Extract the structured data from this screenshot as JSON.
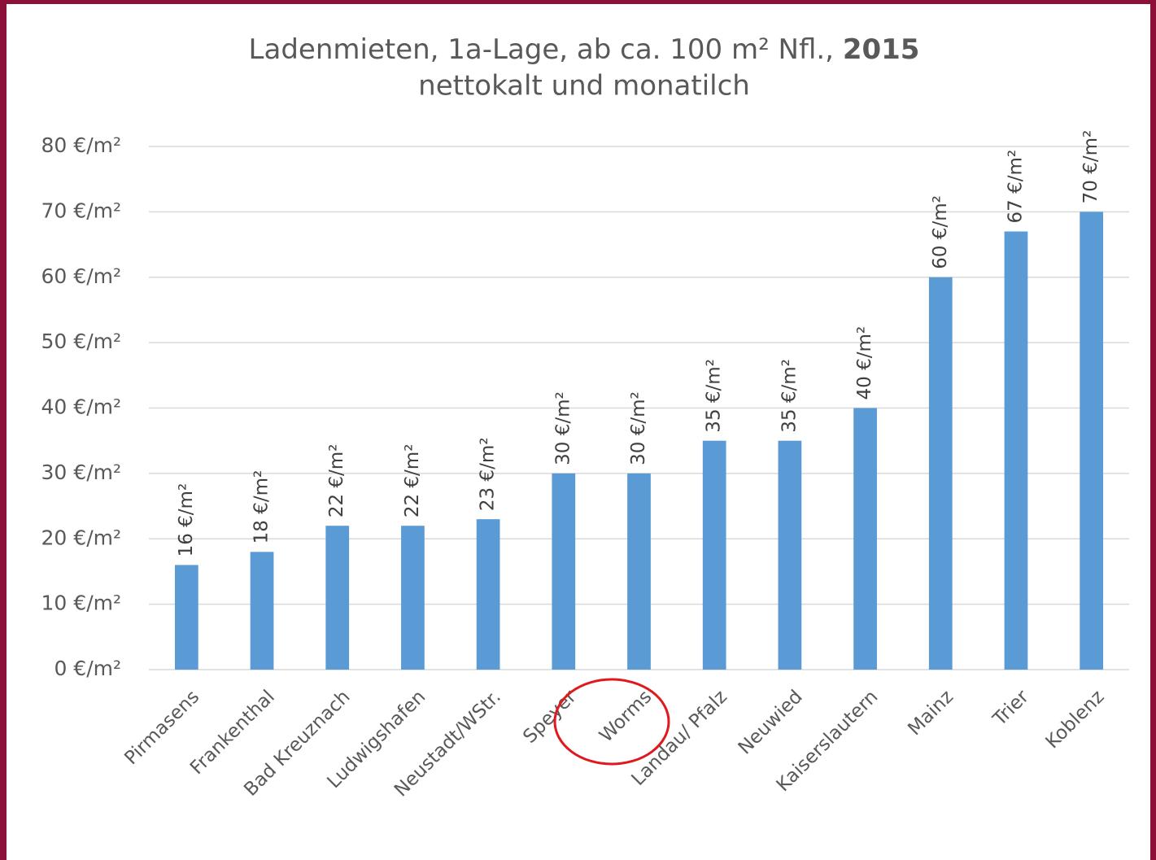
{
  "chart_data": {
    "type": "bar",
    "title": [
      "Ladenmieten, 1a-Lage, ab ca. 100 m² Nfl.,",
      "2015"
    ],
    "subtitle": "nettokalt und monatilch",
    "categories": [
      "Pirmasens",
      "Frankenthal",
      "Bad Kreuznach",
      "Ludwigshafen",
      "Neustadt/WStr.",
      "Speyer",
      "Worms",
      "Landau/ Pfalz",
      "Neuwied",
      "Kaiserslautern",
      "Mainz",
      "Trier",
      "Koblenz"
    ],
    "values": [
      16,
      18,
      22,
      22,
      23,
      30,
      30,
      35,
      35,
      40,
      60,
      67,
      70
    ],
    "value_labels": [
      "16 €/m²",
      "18 €/m²",
      "22 €/m²",
      "22 €/m²",
      "23 €/m²",
      "30 €/m²",
      "30 €/m²",
      "35 €/m²",
      "35 €/m²",
      "40 €/m²",
      "60 €/m²",
      "67 €/m²",
      "70 €/m²"
    ],
    "color": "#5b9bd5",
    "ylim": [
      0,
      80
    ],
    "yticks": [
      {
        "value": 0,
        "label": "0 €/m²"
      },
      {
        "value": 10,
        "label": "10 €/m²"
      },
      {
        "value": 20,
        "label": "20 €/m²"
      },
      {
        "value": 30,
        "label": "30 €/m²"
      },
      {
        "value": 40,
        "label": "40 €/m²"
      },
      {
        "value": 50,
        "label": "50 €/m²"
      },
      {
        "value": 60,
        "label": "60 €/m²"
      },
      {
        "value": 70,
        "label": "70 €/m²"
      },
      {
        "value": 80,
        "label": "80 €/m²"
      }
    ],
    "grid": true
  }
}
